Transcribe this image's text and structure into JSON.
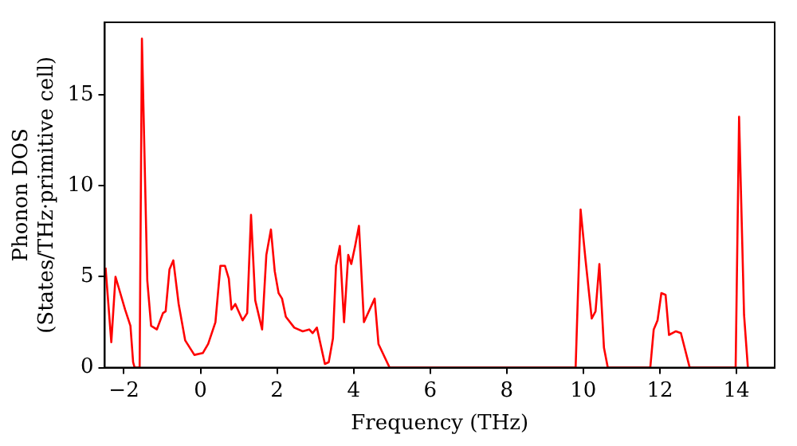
{
  "chart_data": {
    "type": "line",
    "xlabel": "Frequency (THz)",
    "ylabel": "Phonon DOS\n(States/THz·primitive cell)",
    "xlim": [
      -2.5,
      15
    ],
    "ylim": [
      0,
      19
    ],
    "xticks": [
      {
        "value": -2,
        "label": "−2"
      },
      0,
      2,
      4,
      6,
      8,
      10,
      12,
      14
    ],
    "yticks": [
      0,
      5,
      10,
      15
    ],
    "grid": false,
    "legend": false,
    "marker": "none",
    "line_style": "solid",
    "series": [
      {
        "color": "#ff0000",
        "x": [
          -2.48,
          -2.33,
          -2.22,
          -1.97,
          -1.83,
          -1.76,
          -1.72,
          -1.59,
          -1.53,
          -1.39,
          -1.29,
          -1.14,
          -0.98,
          -0.91,
          -0.81,
          -0.71,
          -0.57,
          -0.4,
          -0.16,
          0.06,
          0.2,
          0.39,
          0.52,
          0.64,
          0.74,
          0.81,
          0.91,
          1.1,
          1.22,
          1.32,
          1.43,
          1.61,
          1.72,
          1.84,
          1.94,
          2.04,
          2.13,
          2.23,
          2.45,
          2.67,
          2.84,
          2.93,
          3.04,
          3.25,
          3.35,
          3.46,
          3.54,
          3.64,
          3.75,
          3.86,
          3.94,
          4.04,
          4.14,
          4.27,
          4.55,
          4.65,
          4.94,
          9.8,
          9.93,
          10.06,
          10.22,
          10.32,
          10.42,
          10.54,
          10.64,
          11.75,
          11.84,
          11.94,
          12.04,
          12.15,
          12.24,
          12.42,
          12.55,
          12.78,
          13.98,
          14.07,
          14.2,
          14.3
        ],
        "values": [
          5.5,
          1.4,
          5.0,
          3.2,
          2.3,
          0.3,
          0,
          0,
          18.1,
          4.8,
          2.3,
          2.1,
          3.0,
          3.1,
          5.4,
          5.9,
          3.5,
          1.5,
          0.7,
          0.8,
          1.3,
          2.5,
          5.6,
          5.6,
          4.9,
          3.2,
          3.5,
          2.6,
          3.0,
          8.4,
          3.7,
          2.1,
          6.2,
          7.6,
          5.3,
          4.1,
          3.8,
          2.8,
          2.2,
          2.0,
          2.1,
          1.9,
          2.2,
          0.2,
          0.3,
          1.6,
          5.6,
          6.7,
          2.5,
          6.2,
          5.7,
          6.7,
          7.8,
          2.5,
          3.8,
          1.3,
          0,
          0,
          8.7,
          5.9,
          2.7,
          3.1,
          5.7,
          1.1,
          0,
          0,
          2.1,
          2.6,
          4.1,
          4.0,
          1.8,
          2.0,
          1.9,
          0,
          0,
          13.8,
          2.9,
          0
        ]
      }
    ]
  }
}
